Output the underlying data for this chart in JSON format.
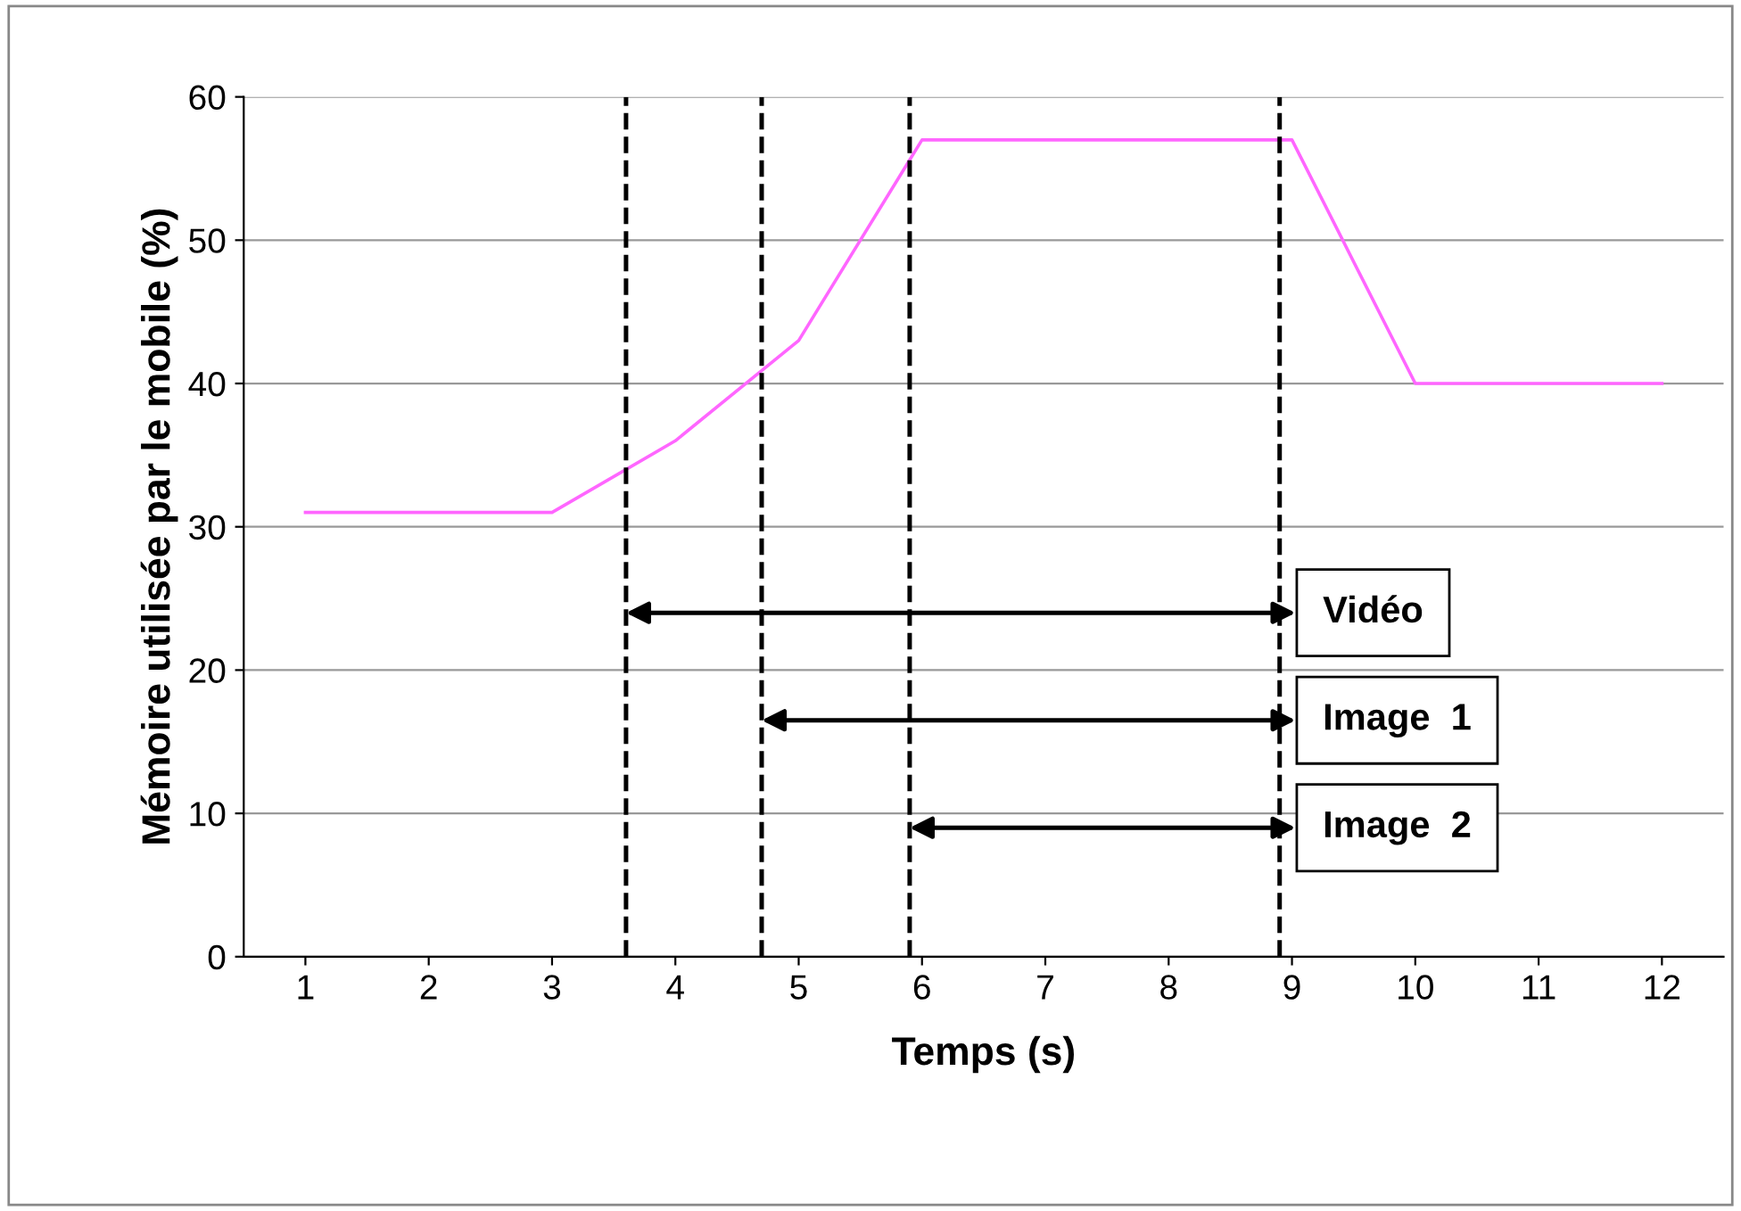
{
  "chart_data": {
    "type": "line",
    "xlabel": "Temps (s)",
    "ylabel": "Mémoire utilisée par le mobile (%)",
    "x": [
      1,
      2,
      3,
      4,
      5,
      6,
      7,
      8,
      9,
      10,
      11,
      12
    ],
    "series": [
      {
        "color": "#ff66ff",
        "values": [
          31,
          31,
          31,
          36,
          43,
          57,
          57,
          57,
          57,
          40,
          40,
          40
        ]
      }
    ],
    "xlim": [
      0.5,
      12.5
    ],
    "xticks": [
      1,
      2,
      3,
      4,
      5,
      6,
      7,
      8,
      9,
      10,
      11,
      12
    ],
    "ylim": [
      0,
      60
    ],
    "yticks": [
      0,
      10,
      20,
      30,
      40,
      50,
      60
    ],
    "grid": "y",
    "marker": "none",
    "line_style": "solid",
    "ref_lines": [
      {
        "axis": "x",
        "value": 3.6,
        "color": "#000000",
        "line_style": "dashed"
      },
      {
        "axis": "x",
        "value": 4.7,
        "color": "#000000",
        "line_style": "dashed"
      },
      {
        "axis": "x",
        "value": 5.9,
        "color": "#000000",
        "line_style": "dashed"
      },
      {
        "axis": "x",
        "value": 8.9,
        "color": "#000000",
        "line_style": "dashed"
      }
    ],
    "annotations": [
      {
        "text": "Vidéo",
        "x": 3.6,
        "y": 24
      },
      {
        "text": "Image  1",
        "x": 4.7,
        "y": 16.5
      },
      {
        "text": "Image  2",
        "x": 5.9,
        "y": 9
      }
    ]
  }
}
